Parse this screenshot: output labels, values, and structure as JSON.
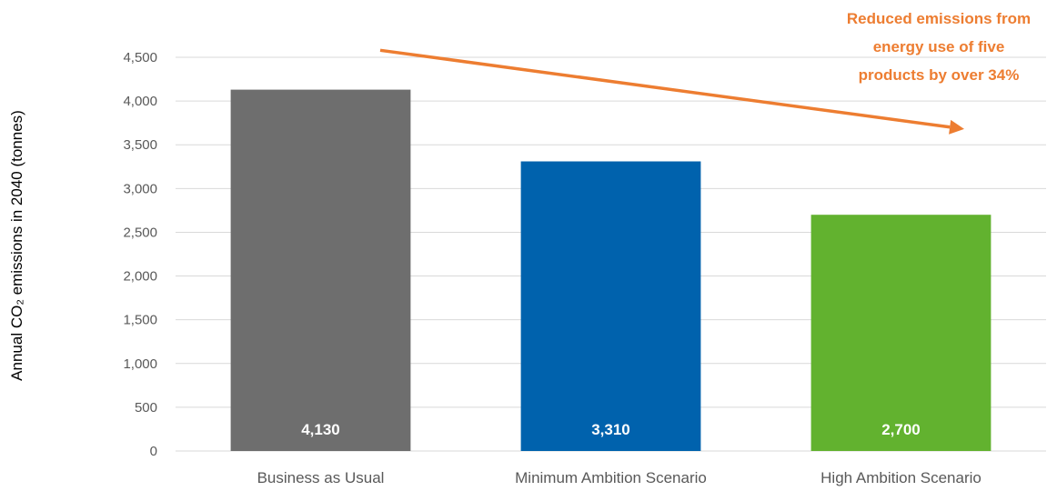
{
  "chart_data": {
    "type": "bar",
    "categories": [
      "Business as Usual",
      "Minimum Ambition Scenario",
      "High Ambition Scenario"
    ],
    "values": [
      4130,
      3310,
      2700
    ],
    "data_labels": [
      "4,130",
      "3,310",
      "2,700"
    ],
    "colors": [
      "#6e6e6e",
      "#0062ad",
      "#62b22f"
    ],
    "ylabel": "Annual CO₂ emissions in 2040 (tonnes)",
    "xlabel": "",
    "ylim": [
      0,
      4500
    ],
    "yticks": [
      0,
      500,
      1000,
      1500,
      2000,
      2500,
      3000,
      3500,
      4000,
      4500
    ],
    "ytick_labels": [
      "0",
      "500",
      "1,000",
      "1,500",
      "2,000",
      "2,500",
      "3,000",
      "3,500",
      "4,000",
      "4,500"
    ],
    "grid": true,
    "legend": "none",
    "annotation": {
      "lines": [
        "Reduced emissions from",
        "energy use of five",
        "products by over 34%"
      ],
      "color": "#ed7d31",
      "arrow_from_value": 4580,
      "arrow_to_value": 3680
    }
  }
}
